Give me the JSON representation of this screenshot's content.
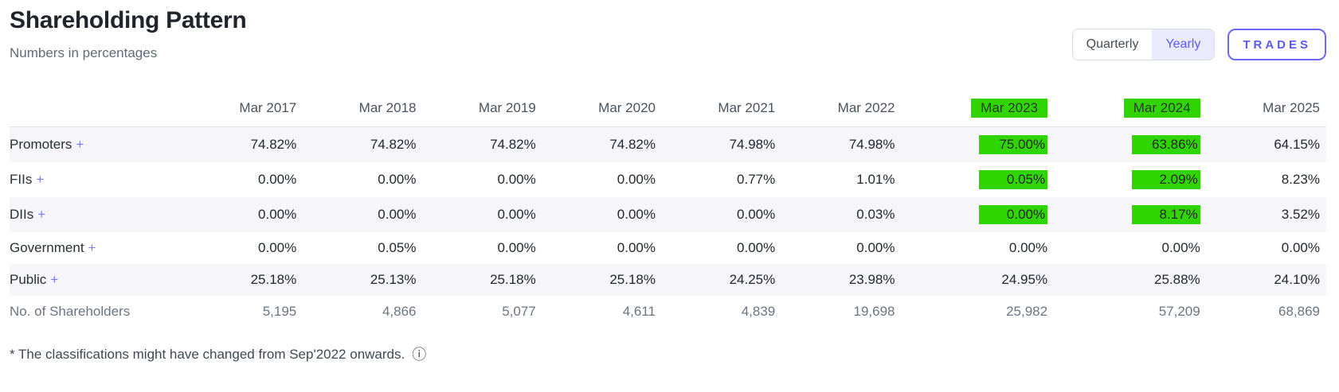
{
  "header": {
    "title": "Shareholding Pattern",
    "subtitle": "Numbers in percentages",
    "toggle": {
      "options": [
        "Quarterly",
        "Yearly"
      ],
      "selected": "Yearly"
    },
    "trades_label": "TRADES"
  },
  "colors": {
    "highlight": "#30d500",
    "accent": "#5a5af2"
  },
  "table": {
    "columns": [
      "Mar 2017",
      "Mar 2018",
      "Mar 2019",
      "Mar 2020",
      "Mar 2021",
      "Mar 2022",
      "Mar 2023",
      "Mar 2024",
      "Mar 2025"
    ],
    "column_highlights": [
      false,
      false,
      false,
      false,
      false,
      false,
      true,
      true,
      false
    ],
    "rows": [
      {
        "label": "Promoters",
        "expandable": true,
        "muted": false,
        "values": [
          "74.82%",
          "74.82%",
          "74.82%",
          "74.82%",
          "74.98%",
          "74.98%",
          "75.00%",
          "63.86%",
          "64.15%"
        ],
        "highlights": [
          false,
          false,
          false,
          false,
          false,
          false,
          true,
          true,
          false
        ]
      },
      {
        "label": "FIIs",
        "expandable": true,
        "muted": false,
        "values": [
          "0.00%",
          "0.00%",
          "0.00%",
          "0.00%",
          "0.77%",
          "1.01%",
          "0.05%",
          "2.09%",
          "8.23%"
        ],
        "highlights": [
          false,
          false,
          false,
          false,
          false,
          false,
          true,
          true,
          false
        ]
      },
      {
        "label": "DIIs",
        "expandable": true,
        "muted": false,
        "values": [
          "0.00%",
          "0.00%",
          "0.00%",
          "0.00%",
          "0.00%",
          "0.03%",
          "0.00%",
          "8.17%",
          "3.52%"
        ],
        "highlights": [
          false,
          false,
          false,
          false,
          false,
          false,
          true,
          true,
          false
        ]
      },
      {
        "label": "Government",
        "expandable": true,
        "muted": false,
        "values": [
          "0.00%",
          "0.05%",
          "0.00%",
          "0.00%",
          "0.00%",
          "0.00%",
          "0.00%",
          "0.00%",
          "0.00%"
        ],
        "highlights": [
          false,
          false,
          false,
          false,
          false,
          false,
          false,
          false,
          false
        ]
      },
      {
        "label": "Public",
        "expandable": true,
        "muted": false,
        "values": [
          "25.18%",
          "25.13%",
          "25.18%",
          "25.18%",
          "24.25%",
          "23.98%",
          "24.95%",
          "25.88%",
          "24.10%"
        ],
        "highlights": [
          false,
          false,
          false,
          false,
          false,
          false,
          false,
          false,
          false
        ]
      },
      {
        "label": "No. of Shareholders",
        "expandable": false,
        "muted": true,
        "values": [
          "5,195",
          "4,866",
          "5,077",
          "4,611",
          "4,839",
          "19,698",
          "25,982",
          "57,209",
          "68,869"
        ],
        "highlights": [
          false,
          false,
          false,
          false,
          false,
          false,
          false,
          false,
          false
        ]
      }
    ]
  },
  "footnote": {
    "text": "* The classifications might have changed from Sep'2022 onwards.",
    "icon": "info-icon",
    "icon_glyph": "ⓘ",
    "plus_glyph": "+"
  }
}
